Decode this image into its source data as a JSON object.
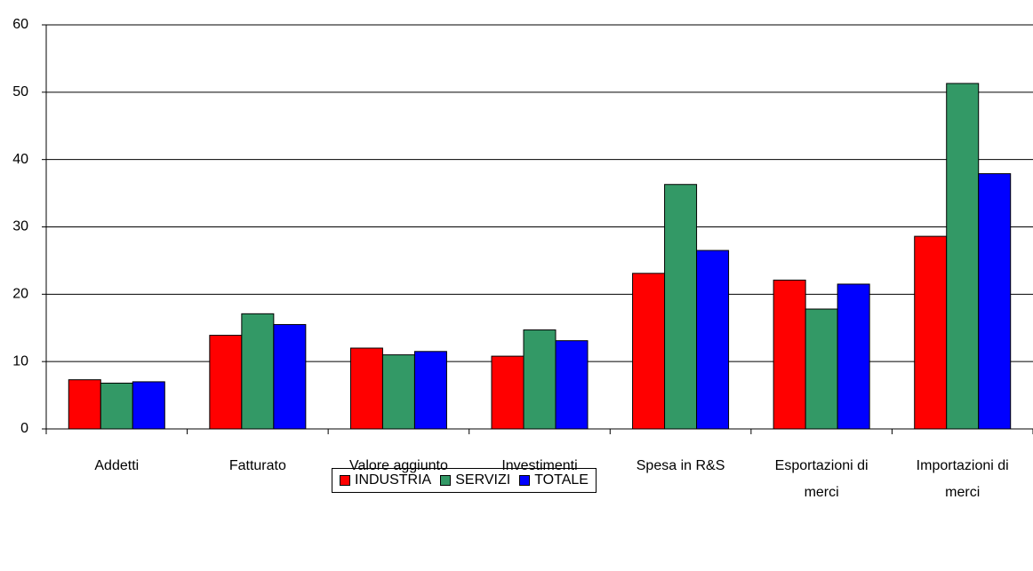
{
  "chart_data": {
    "type": "bar",
    "categories": [
      "Addetti",
      "Fatturato",
      "Valore aggiunto",
      "Investimenti",
      "Spesa in R&S",
      "Esportazioni di merci",
      "Importazioni di merci"
    ],
    "series": [
      {
        "name": "INDUSTRIA",
        "color": "#ff0000",
        "values": [
          7.3,
          13.9,
          12.0,
          10.8,
          23.1,
          22.1,
          28.6
        ]
      },
      {
        "name": "SERVIZI",
        "color": "#339966",
        "values": [
          6.8,
          17.1,
          11.0,
          14.7,
          36.3,
          17.8,
          51.3
        ]
      },
      {
        "name": "TOTALE",
        "color": "#0000ff",
        "values": [
          7.0,
          15.5,
          11.5,
          13.1,
          26.5,
          21.5,
          37.9
        ]
      }
    ],
    "ylim": [
      0,
      60
    ],
    "yticks": [
      0,
      10,
      20,
      30,
      40,
      50,
      60
    ],
    "grid": true,
    "legend": "bottom"
  }
}
